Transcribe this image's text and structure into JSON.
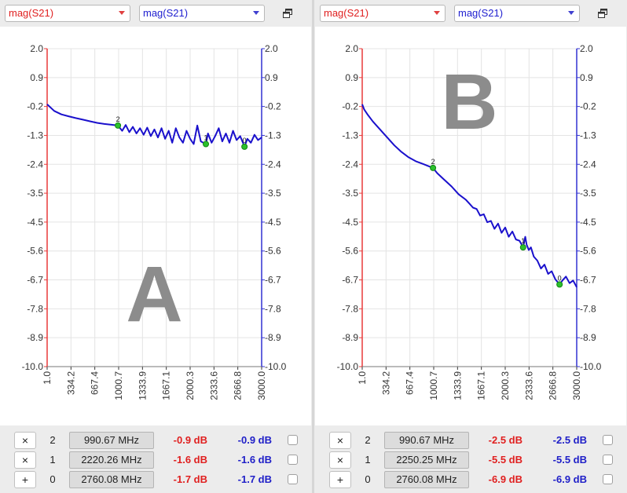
{
  "colors": {
    "left_axis": "#e83a3a",
    "right_axis": "#3232d2",
    "trace": "#1a10cc",
    "marker": "#2cc02c",
    "grid": "#e4e4e4",
    "watermark": "#8c8c8c"
  },
  "icons": {
    "restore": "restore-window-icon",
    "remove": "remove-marker-icon",
    "add": "add-marker-icon"
  },
  "panels": [
    {
      "left_select": "mag(S21)",
      "right_select": "mag(S21)",
      "watermark": "A",
      "markers": [
        {
          "button": "×",
          "index": "2",
          "freq": "990.67 MHz",
          "left_value": "-0.9 dB",
          "right_value": "-0.9 dB"
        },
        {
          "button": "×",
          "index": "1",
          "freq": "2220.26 MHz",
          "left_value": "-1.6 dB",
          "right_value": "-1.6 dB"
        },
        {
          "button": "+",
          "index": "0",
          "freq": "2760.08 MHz",
          "left_value": "-1.7 dB",
          "right_value": "-1.7 dB"
        }
      ],
      "chart_data": {
        "type": "line",
        "xlim": [
          1.0,
          3000.0
        ],
        "ylim": [
          -10.0,
          2.0
        ],
        "x_ticks": [
          "1.0",
          "334.2",
          "667.4",
          "1000.7",
          "1333.9",
          "1667.1",
          "2000.3",
          "2333.6",
          "2666.8",
          "3000.0"
        ],
        "y_ticks": [
          "2.0",
          "0.9",
          "-0.2",
          "-1.3",
          "-2.4",
          "-3.5",
          "-4.5",
          "-5.6",
          "-6.7",
          "-7.8",
          "-8.9",
          "-10.0"
        ],
        "legend": "none",
        "series": [
          {
            "x": [
              1,
              100,
              200,
              300,
              400,
              500,
              600,
              700,
              800,
              900,
              990.67,
              1050,
              1100,
              1150,
              1200,
              1250,
              1300,
              1350,
              1400,
              1450,
              1500,
              1550,
              1600,
              1650,
              1700,
              1750,
              1800,
              1850,
              1900,
              1950,
              2000,
              2050,
              2100,
              2150,
              2220.26,
              2250,
              2300,
              2350,
              2400,
              2450,
              2500,
              2550,
              2600,
              2650,
              2700,
              2760.08,
              2800,
              2850,
              2900,
              2950,
              3000
            ],
            "y": [
              -0.1,
              -0.35,
              -0.48,
              -0.55,
              -0.62,
              -0.68,
              -0.74,
              -0.8,
              -0.84,
              -0.87,
              -0.9,
              -1.1,
              -0.88,
              -1.15,
              -0.95,
              -1.2,
              -1.0,
              -1.25,
              -0.98,
              -1.3,
              -1.05,
              -1.35,
              -1.0,
              -1.4,
              -1.1,
              -1.55,
              -1.0,
              -1.35,
              -1.55,
              -1.1,
              -1.4,
              -1.6,
              -0.9,
              -1.5,
              -1.6,
              -1.2,
              -1.55,
              -1.3,
              -1.0,
              -1.5,
              -1.2,
              -1.55,
              -1.1,
              -1.45,
              -1.3,
              -1.7,
              -1.4,
              -1.55,
              -1.25,
              -1.45,
              -1.35
            ]
          }
        ],
        "markers": [
          {
            "label": "2",
            "x": 990.67,
            "y": -0.9
          },
          {
            "label": "1",
            "x": 2220.26,
            "y": -1.6
          },
          {
            "label": "0",
            "x": 2760.08,
            "y": -1.7
          }
        ]
      }
    },
    {
      "left_select": "mag(S21)",
      "right_select": "mag(S21)",
      "watermark": "B",
      "markers": [
        {
          "button": "×",
          "index": "2",
          "freq": "990.67 MHz",
          "left_value": "-2.5 dB",
          "right_value": "-2.5 dB"
        },
        {
          "button": "×",
          "index": "1",
          "freq": "2250.25 MHz",
          "left_value": "-5.5 dB",
          "right_value": "-5.5 dB"
        },
        {
          "button": "+",
          "index": "0",
          "freq": "2760.08 MHz",
          "left_value": "-6.9 dB",
          "right_value": "-6.9 dB"
        }
      ],
      "chart_data": {
        "type": "line",
        "xlim": [
          1.0,
          3000.0
        ],
        "ylim": [
          -10.0,
          2.0
        ],
        "x_ticks": [
          "1.0",
          "334.2",
          "667.4",
          "1000.7",
          "1333.9",
          "1667.1",
          "2000.3",
          "2333.6",
          "2666.8",
          "3000.0"
        ],
        "y_ticks": [
          "2.0",
          "0.9",
          "-0.2",
          "-1.3",
          "-2.4",
          "-3.5",
          "-4.5",
          "-5.6",
          "-6.7",
          "-7.8",
          "-8.9",
          "-10.0"
        ],
        "legend": "none",
        "series": [
          {
            "x": [
              1,
              30,
              80,
              150,
              250,
              350,
              450,
              550,
              650,
              750,
              850,
              990.67,
              1050,
              1150,
              1250,
              1350,
              1450,
              1500,
              1550,
              1600,
              1650,
              1700,
              1750,
              1800,
              1850,
              1900,
              1950,
              2000,
              2050,
              2100,
              2150,
              2200,
              2250.25,
              2280,
              2300,
              2330,
              2360,
              2400,
              2450,
              2500,
              2550,
              2600,
              2650,
              2700,
              2760.08,
              2800,
              2850,
              2900,
              2950,
              3000
            ],
            "y": [
              -0.1,
              -0.3,
              -0.5,
              -0.75,
              -1.05,
              -1.35,
              -1.65,
              -1.9,
              -2.1,
              -2.25,
              -2.35,
              -2.5,
              -2.7,
              -2.95,
              -3.2,
              -3.5,
              -3.7,
              -3.85,
              -4.0,
              -4.05,
              -4.3,
              -4.25,
              -4.55,
              -4.5,
              -4.8,
              -4.6,
              -4.95,
              -4.75,
              -5.1,
              -4.9,
              -5.2,
              -5.25,
              -5.5,
              -5.1,
              -5.4,
              -5.6,
              -5.5,
              -5.85,
              -6.0,
              -6.3,
              -6.15,
              -6.5,
              -6.4,
              -6.7,
              -6.9,
              -6.75,
              -6.6,
              -6.85,
              -6.75,
              -7.0
            ]
          }
        ],
        "markers": [
          {
            "label": "2",
            "x": 990.67,
            "y": -2.5
          },
          {
            "label": "1",
            "x": 2250.25,
            "y": -5.5
          },
          {
            "label": "0",
            "x": 2760.08,
            "y": -6.9
          }
        ]
      }
    }
  ]
}
